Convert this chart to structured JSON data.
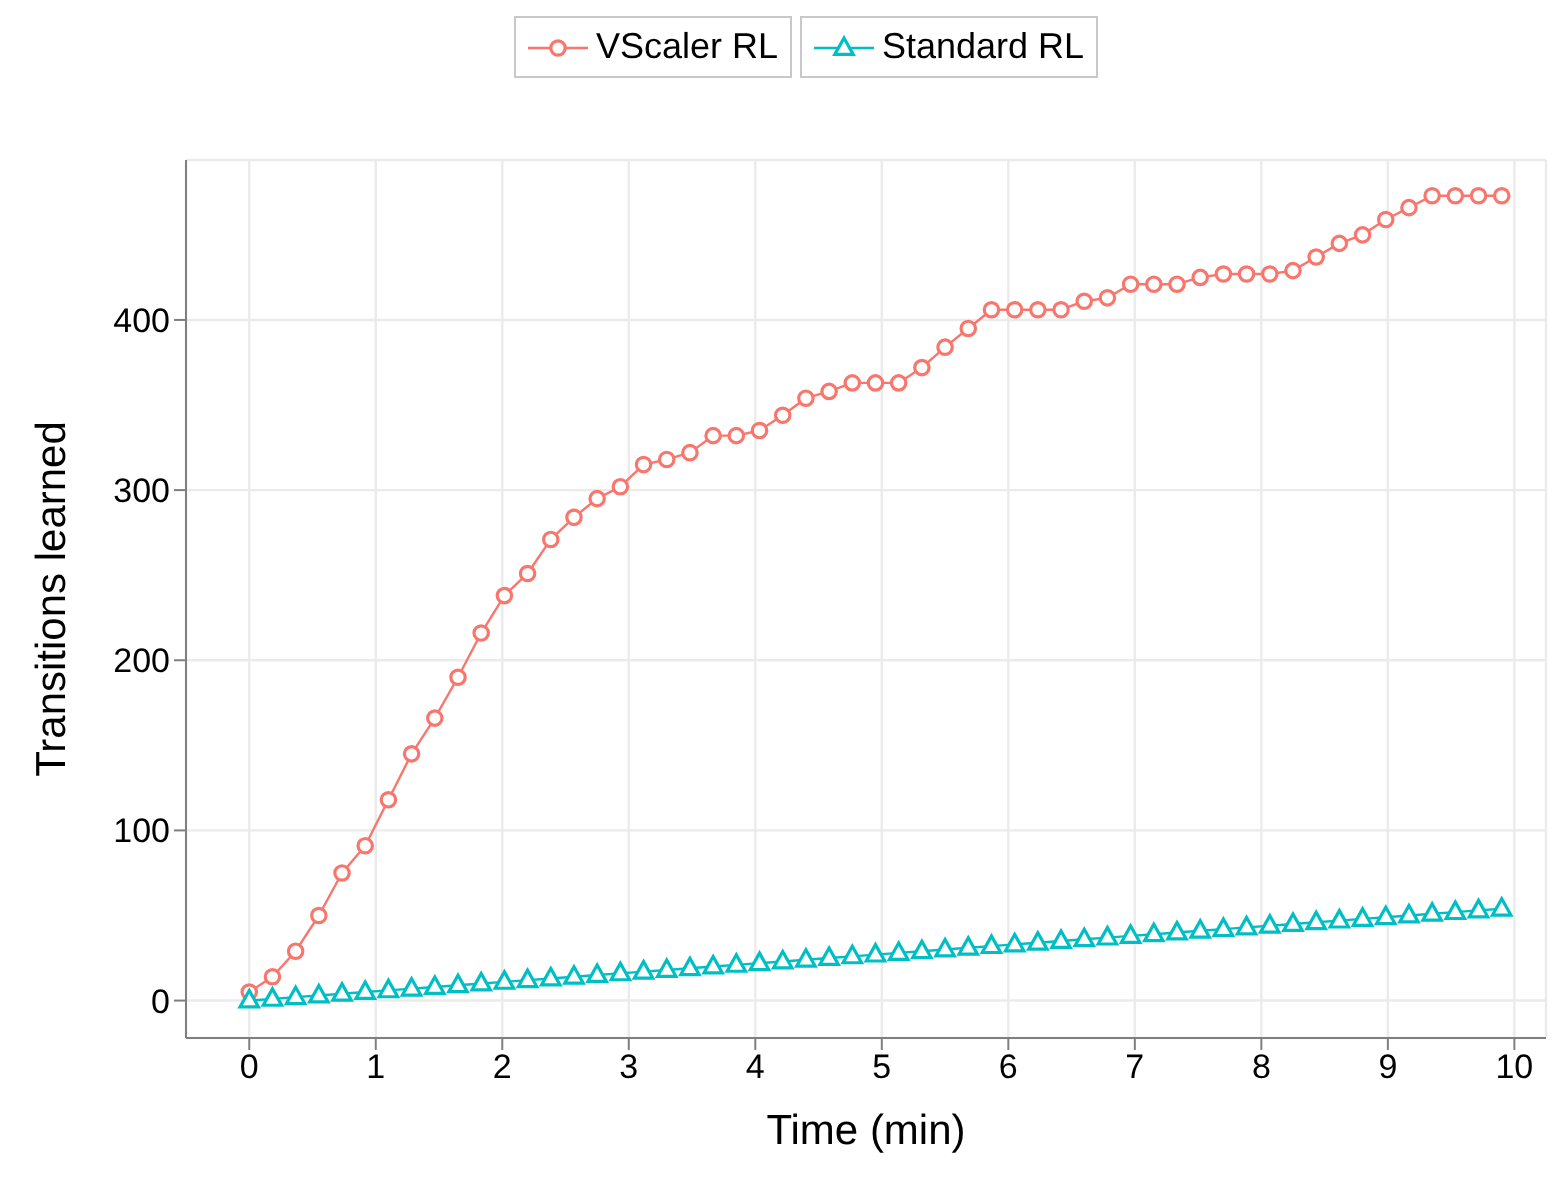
{
  "chart_data": {
    "type": "line",
    "xlabel": "Time (min)",
    "ylabel": "Transitions learned",
    "x": [
      0,
      0.1833,
      0.3667,
      0.55,
      0.7333,
      0.9167,
      1.1,
      1.2833,
      1.4667,
      1.65,
      1.8333,
      2.0167,
      2.2,
      2.3833,
      2.5667,
      2.75,
      2.9333,
      3.1167,
      3.3,
      3.4833,
      3.6667,
      3.85,
      4.0333,
      4.2167,
      4.4,
      4.5833,
      4.7667,
      4.95,
      5.1333,
      5.3167,
      5.5,
      5.6833,
      5.8667,
      6.05,
      6.2333,
      6.4167,
      6.6,
      6.7833,
      6.9667,
      7.15,
      7.3333,
      7.5167,
      7.7,
      7.8833,
      8.0667,
      8.25,
      8.4333,
      8.6167,
      8.8,
      8.9833,
      9.1667,
      9.35,
      9.5333,
      9.7167,
      9.9
    ],
    "series": [
      {
        "name": "VScaler RL",
        "color": "#f8766d",
        "marker": "circle",
        "values": [
          5,
          14,
          29,
          50,
          75,
          91,
          118,
          145,
          166,
          190,
          216,
          238,
          251,
          271,
          284,
          295,
          302,
          315,
          318,
          322,
          332,
          332,
          335,
          344,
          354,
          358,
          363,
          363,
          363,
          372,
          384,
          395,
          406,
          406,
          406,
          406,
          411,
          413,
          421,
          421,
          421,
          425,
          427,
          427,
          427,
          429,
          437,
          445,
          450,
          459,
          466,
          473,
          473,
          473,
          473
        ]
      },
      {
        "name": "Standard RL",
        "color": "#00bfc4",
        "marker": "triangle",
        "values": [
          0,
          1,
          2,
          3,
          4,
          5,
          6,
          7,
          8,
          9,
          10,
          11,
          12,
          13,
          14,
          15,
          16,
          17,
          18,
          19,
          20,
          21,
          22,
          23,
          24,
          25,
          26,
          27,
          28,
          29,
          30,
          31,
          32,
          33,
          34,
          35,
          36,
          37,
          38,
          39,
          40,
          41,
          42,
          43,
          44,
          45,
          46,
          47,
          48,
          49,
          50,
          51,
          52,
          53,
          54
        ]
      }
    ],
    "xlim": [
      -0.5,
      10.25
    ],
    "xticks": [
      0,
      1,
      2,
      3,
      4,
      5,
      6,
      7,
      8,
      9,
      10
    ],
    "ylim": [
      -22,
      494
    ],
    "yticks": [
      0,
      100,
      200,
      300,
      400
    ],
    "grid": true,
    "legend": "top",
    "line_style": "solid"
  }
}
